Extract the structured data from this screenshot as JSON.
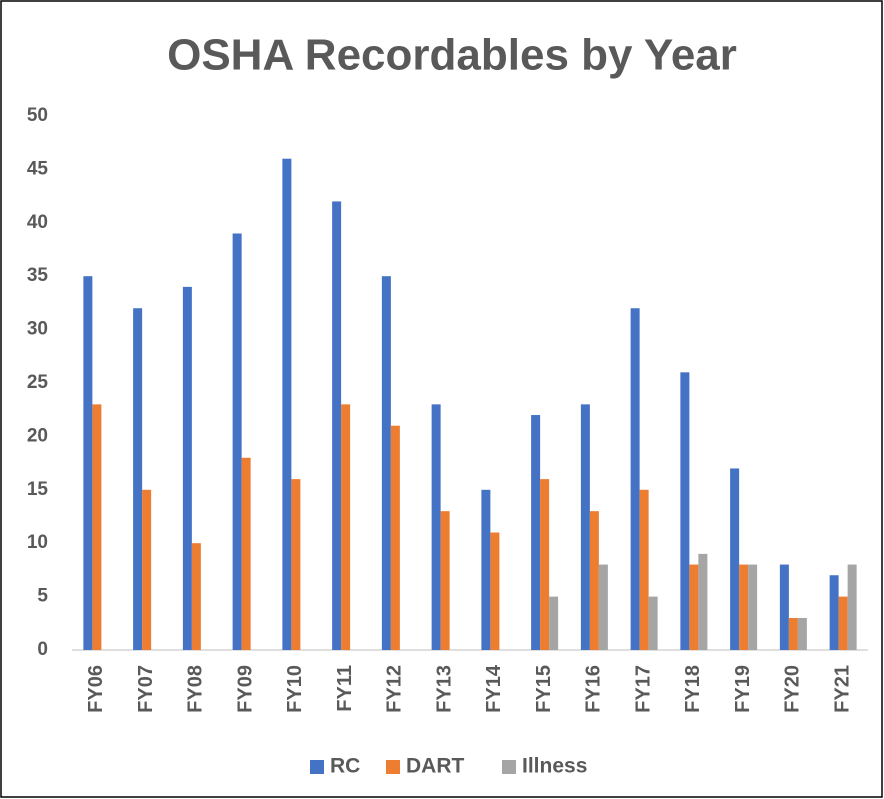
{
  "chart_data": {
    "type": "bar",
    "title": "OSHA Recordables by Year",
    "categories": [
      "FY06",
      "FY07",
      "FY08",
      "FY09",
      "FY10",
      "FY11",
      "FY12",
      "FY13",
      "FY14",
      "FY15",
      "FY16",
      "FY17",
      "FY18",
      "FY19",
      "FY20",
      "FY21"
    ],
    "series": [
      {
        "name": "RC",
        "color": "#4472c4",
        "values": [
          35,
          32,
          34,
          39,
          46,
          42,
          35,
          23,
          15,
          22,
          23,
          32,
          26,
          17,
          8,
          7
        ]
      },
      {
        "name": "DART",
        "color": "#ed7d31",
        "values": [
          23,
          15,
          10,
          18,
          16,
          23,
          21,
          13,
          11,
          16,
          13,
          15,
          8,
          8,
          3,
          5
        ]
      },
      {
        "name": "Illness",
        "color": "#a5a5a5",
        "values": [
          null,
          null,
          null,
          null,
          null,
          null,
          null,
          null,
          null,
          5,
          8,
          5,
          9,
          8,
          3,
          8
        ]
      }
    ],
    "ylim": [
      0,
      50
    ],
    "yticks": [
      0,
      5,
      10,
      15,
      20,
      25,
      30,
      35,
      40,
      45,
      50
    ],
    "grid": false,
    "legend": "bottom"
  }
}
